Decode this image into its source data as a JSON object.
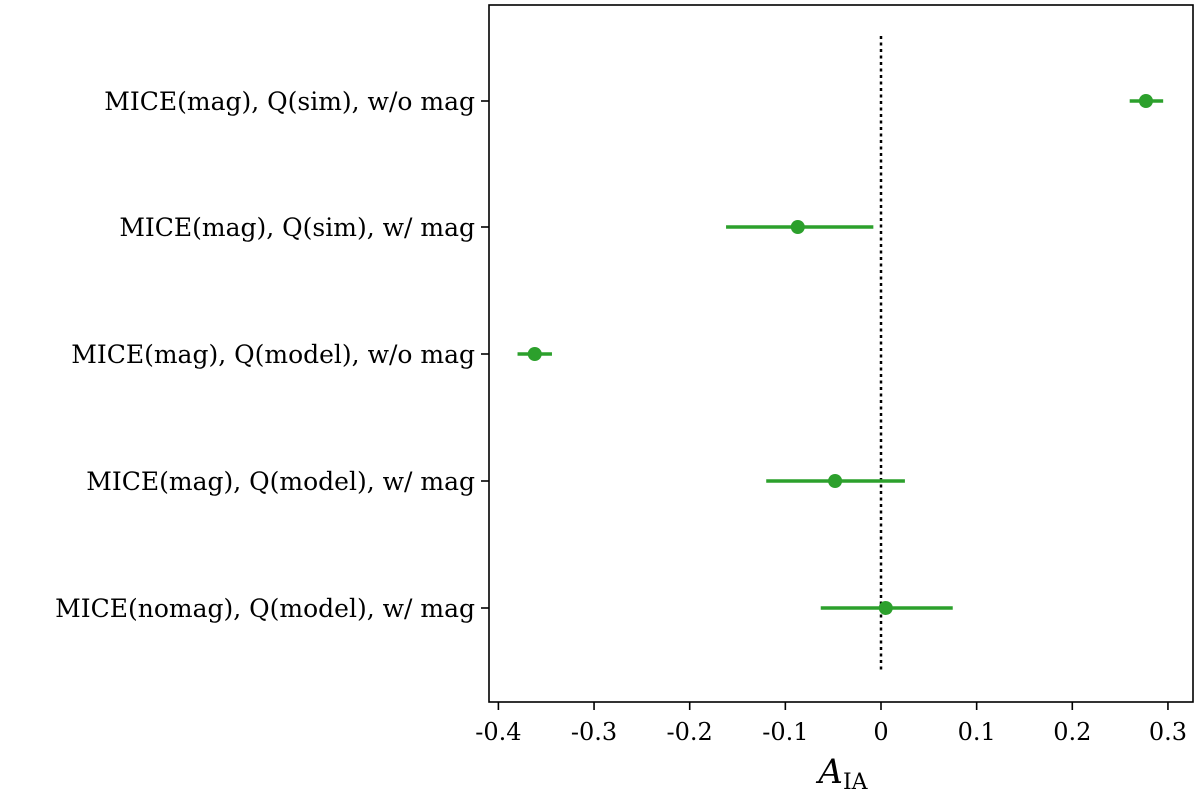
{
  "chart_data": {
    "type": "errorbar",
    "title": "",
    "xlabel": {
      "base": "A",
      "subscript": "IA"
    },
    "ylabel": "",
    "xlim": [
      -0.41,
      0.325
    ],
    "xticks": [
      -0.4,
      -0.3,
      -0.2,
      -0.1,
      0,
      0.1,
      0.2,
      0.3
    ],
    "xtick_labels": [
      "-0.4",
      "-0.3",
      "-0.2",
      "-0.1",
      "0",
      "0.1",
      "0.2",
      "0.3"
    ],
    "reference_line": {
      "x": 0,
      "style": "dotted",
      "color": "#000000"
    },
    "grid": false,
    "marker_color": "#2ca02c",
    "points": [
      {
        "label": "MICE(mag), Q(sim), w/o mag",
        "value": 0.277,
        "err_low": 0.26,
        "err_high": 0.295
      },
      {
        "label": "MICE(mag), Q(sim), w/ mag",
        "value": -0.087,
        "err_low": -0.162,
        "err_high": -0.008
      },
      {
        "label": "MICE(mag), Q(model), w/o mag",
        "value": -0.362,
        "err_low": -0.38,
        "err_high": -0.344
      },
      {
        "label": "MICE(mag), Q(model), w/ mag",
        "value": -0.048,
        "err_low": -0.12,
        "err_high": 0.025
      },
      {
        "label": "MICE(nomag), Q(model), w/ mag",
        "value": 0.005,
        "err_low": -0.063,
        "err_high": 0.075
      }
    ]
  }
}
